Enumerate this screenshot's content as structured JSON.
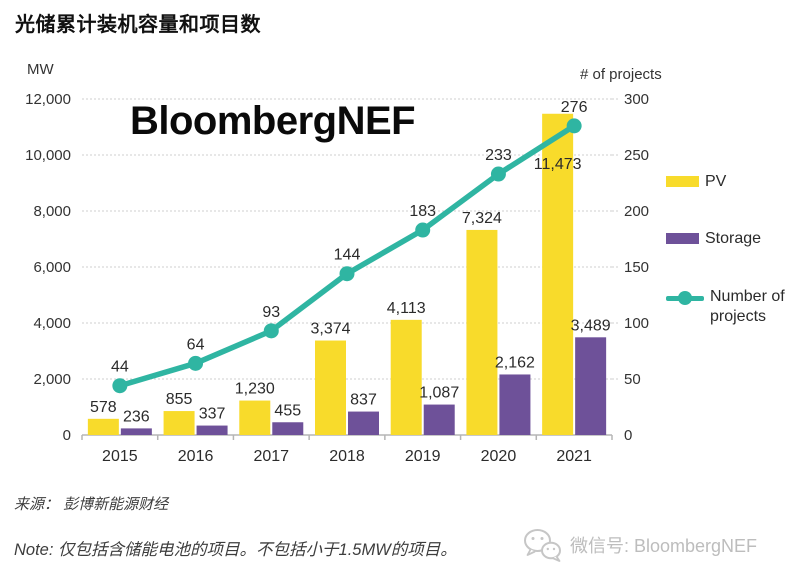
{
  "title": "光储累计装机容量和项目数",
  "watermark": "BloombergNEF",
  "chart_data": {
    "type": "combo-bar-line",
    "title": "光储累计装机容量和项目数",
    "categories": [
      "2015",
      "2016",
      "2017",
      "2018",
      "2019",
      "2020",
      "2021"
    ],
    "left_axis": {
      "label": "MW",
      "min": 0,
      "max": 12000,
      "step": 2000,
      "ticks": [
        "0",
        "2,000",
        "4,000",
        "6,000",
        "8,000",
        "10,000",
        "12,000"
      ]
    },
    "right_axis": {
      "label": "# of projects",
      "min": 0,
      "max": 300,
      "step": 50,
      "ticks": [
        "0",
        "50",
        "100",
        "150",
        "200",
        "250",
        "300"
      ]
    },
    "series": [
      {
        "name": "PV",
        "type": "bar",
        "axis": "left",
        "color": "#F8DB2B",
        "values": [
          578,
          855,
          1230,
          3374,
          4113,
          7324,
          11473
        ],
        "labels": [
          "578",
          "855",
          "1,230",
          "3,374",
          "4,113",
          "7,324",
          "11,473"
        ]
      },
      {
        "name": "Storage",
        "type": "bar",
        "axis": "left",
        "color": "#6E5199",
        "values": [
          236,
          337,
          455,
          837,
          1087,
          2162,
          3489
        ],
        "labels": [
          "236",
          "337",
          "455",
          "837",
          "1,087",
          "2,162",
          "3,489"
        ]
      },
      {
        "name": "Number of projects",
        "type": "line",
        "axis": "right",
        "color": "#2FB5A2",
        "values": [
          44,
          64,
          93,
          144,
          183,
          233,
          276
        ],
        "labels": [
          "44",
          "64",
          "93",
          "144",
          "183",
          "233",
          "276"
        ]
      }
    ],
    "label_overrides": [
      {
        "series": 0,
        "index": 6,
        "dy": 62
      }
    ],
    "grid": "dotted horizontal gridlines",
    "legend_position": "right"
  },
  "legend": {
    "pv": "PV",
    "storage": "Storage",
    "projects": "Number of projects"
  },
  "footer": {
    "source": "来源： 彭博新能源财经",
    "note": "Note: 仅包括含储能电池的项目。不包括小于1.5MW的项目。",
    "wechat": "微信号: BloombergNEF"
  }
}
